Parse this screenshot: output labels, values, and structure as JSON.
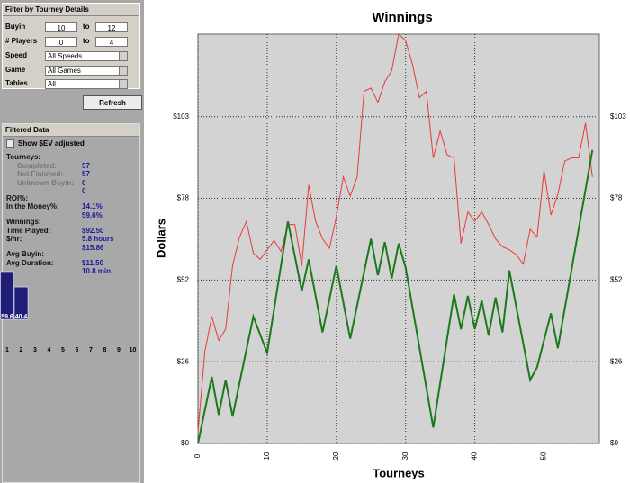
{
  "filter": {
    "title": "Filter by Tourney Details",
    "rows": [
      {
        "label": "Buyin",
        "from": "10",
        "sep": "to",
        "to": "12"
      },
      {
        "label": "# Players",
        "from": "0",
        "sep": "to",
        "to": "4"
      }
    ],
    "selects": [
      {
        "label": "Speed",
        "value": "All Speeds"
      },
      {
        "label": "Game",
        "value": "All Games"
      },
      {
        "label": "Tables",
        "value": "All"
      }
    ]
  },
  "refresh": "Refresh",
  "filtered": {
    "title": "Filtered Data",
    "checkbox": "Show $EV adjusted",
    "groups": [
      [
        {
          "label": "Tourneys:",
          "value": "57",
          "sub": [
            {
              "label": "Completed:",
              "value": "57"
            },
            {
              "label": "Not Finished:",
              "value": "0"
            },
            {
              "label": "Unknown Buyin:",
              "value": "0"
            }
          ]
        }
      ],
      [
        {
          "label": "ROI%:",
          "value": "14.1%"
        },
        {
          "label": "In the Money%:",
          "value": "59.6%"
        }
      ],
      [
        {
          "label": "Winnings:",
          "value": "$92.50"
        },
        {
          "label": "Time Played:",
          "value": "5.8 hours"
        },
        {
          "label": "$/hr:",
          "value": "$15.86"
        }
      ],
      [
        {
          "label": "Avg Buyin:",
          "value": "$11.50"
        },
        {
          "label": "Avg Duration:",
          "value": "10.8 min"
        }
      ]
    ]
  },
  "mini_chart": {
    "type": "bar",
    "categories": [
      "1",
      "2",
      "3",
      "4",
      "5",
      "6",
      "7",
      "8",
      "9",
      "10"
    ],
    "values": [
      59.6,
      40.4,
      null,
      null,
      null,
      null,
      null,
      null,
      null,
      null
    ],
    "color": "#1e1e78"
  },
  "chart_data": {
    "type": "line",
    "title": "Winnings",
    "x_label": "Tourneys",
    "y_label": "Dollars",
    "xlim": [
      0,
      58
    ],
    "xticks": [
      0,
      10,
      20,
      30,
      40,
      50
    ],
    "ylim": [
      0,
      129
    ],
    "yticks": [
      {
        "value": 0,
        "label": "$0"
      },
      {
        "value": 25.75,
        "label": "$26"
      },
      {
        "value": 51.5,
        "label": "$52"
      },
      {
        "value": 77.25,
        "label": "$78"
      },
      {
        "value": 103,
        "label": "$103"
      }
    ],
    "grid": true,
    "series": [
      {
        "color": "#e83a3a",
        "x": [
          0,
          1,
          2,
          3,
          4,
          5,
          6,
          7,
          8,
          9,
          10,
          11,
          12,
          13,
          14,
          15,
          16,
          17,
          18,
          19,
          20,
          21,
          22,
          23,
          24,
          25,
          26,
          27,
          28,
          29,
          30,
          31,
          32,
          33,
          34,
          35,
          36,
          37,
          38,
          39,
          40,
          41,
          42,
          43,
          44,
          45,
          46,
          47,
          48,
          49,
          50,
          51,
          52,
          53,
          54,
          55,
          56,
          57
        ],
        "values": [
          3.7,
          29,
          40,
          32.5,
          36,
          56,
          65,
          70,
          60,
          58,
          61,
          64,
          60.5,
          69,
          69,
          56,
          81.5,
          70,
          64.5,
          61.5,
          71.5,
          84,
          78,
          84,
          111,
          112,
          107.5,
          114,
          117.5,
          129,
          127,
          119.5,
          109,
          111,
          90,
          98.5,
          91,
          90,
          63,
          73,
          70,
          73,
          69,
          64.5,
          62,
          61,
          59.5,
          56.5,
          67.5,
          65,
          86,
          72,
          78.5,
          89,
          90,
          90,
          101,
          84
        ]
      },
      {
        "color": "#1a7a1a",
        "x": [
          0,
          2,
          3,
          4,
          5,
          8,
          10,
          13,
          15,
          16,
          18,
          20,
          22,
          25,
          26,
          27,
          28,
          29,
          30,
          34,
          37,
          38,
          39,
          40,
          41,
          42,
          43,
          44,
          45,
          48,
          49,
          51,
          52,
          57
        ],
        "values": [
          0,
          21,
          9,
          20,
          8.5,
          40,
          28.5,
          70,
          48,
          58,
          35,
          56,
          33,
          64.5,
          53,
          63.5,
          52,
          63,
          55.5,
          5,
          47,
          36,
          46.5,
          36,
          45,
          34,
          46,
          35,
          54.5,
          20,
          24,
          41,
          30,
          92.5
        ]
      }
    ]
  }
}
